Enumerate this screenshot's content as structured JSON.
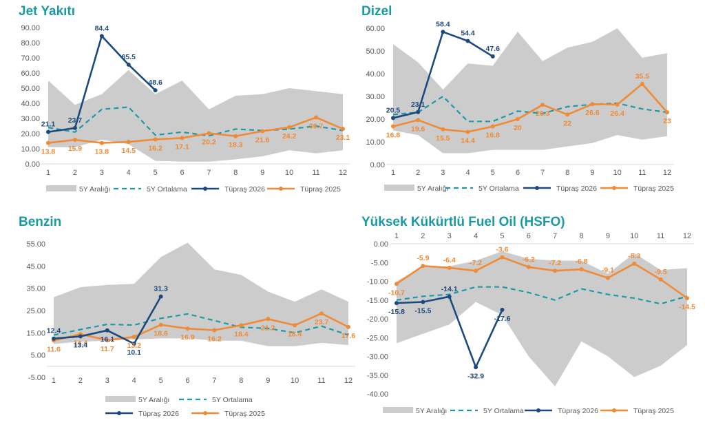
{
  "colors": {
    "title": "#1a9aa6",
    "range": "#cccccc",
    "avg": "#1a9aa6",
    "tupras2026": "#1d4a7e",
    "tupras2025": "#f08a35",
    "tick": "#595959",
    "axis": "#d9d9d9"
  },
  "chart_data": [
    {
      "type": "line",
      "title": "Jet Yakıtı",
      "categories": [
        "1",
        "2",
        "3",
        "4",
        "5",
        "6",
        "7",
        "8",
        "9",
        "10",
        "11",
        "12"
      ],
      "y_ticks": [
        "90.00",
        "80.00",
        "70.00",
        "60.00",
        "50.00",
        "40.00",
        "30.00",
        "20.00",
        "10.00",
        "0.00"
      ],
      "ylim": [
        0,
        90
      ],
      "legend": [
        "5Y Aralığı",
        "5Y Ortalama",
        "Tüpraş 2026",
        "Tüpraş 2025"
      ],
      "range_upper": [
        55,
        39,
        46,
        62,
        46,
        55,
        36,
        45,
        46,
        50,
        48,
        46
      ],
      "range_lower": [
        11,
        11,
        16,
        13,
        2,
        1.5,
        1.5,
        3,
        5,
        9,
        7,
        9
      ],
      "series": [
        {
          "name": "5Y Ortalama",
          "values": [
            24,
            21,
            36,
            37.5,
            19,
            21,
            18.5,
            23,
            22,
            23,
            25,
            22
          ]
        },
        {
          "name": "Tüpraş 2026",
          "values": [
            21.1,
            23.7,
            84.4,
            65.5,
            48.6,
            null,
            null,
            null,
            null,
            null,
            null,
            null
          ],
          "labels": [
            "21.1",
            "23.7",
            "84.4",
            "65.5",
            "48.6",
            "",
            "",
            "",
            "",
            "",
            "",
            ""
          ]
        },
        {
          "name": "Tüpraş 2025",
          "values": [
            13.8,
            15.9,
            13.8,
            14.5,
            16.2,
            17.1,
            20.2,
            18.3,
            21.6,
            24.2,
            30.7,
            23.1
          ],
          "labels": [
            "13.8",
            "15.9",
            "13.8",
            "14.5",
            "16.2",
            "17.1",
            "20.2",
            "18.3",
            "21.6",
            "24.2",
            "30.7",
            "23.1"
          ]
        }
      ]
    },
    {
      "type": "line",
      "title": "Dizel",
      "categories": [
        "1",
        "2",
        "3",
        "4",
        "5",
        "6",
        "7",
        "8",
        "9",
        "10",
        "11",
        "12"
      ],
      "y_ticks": [
        "60.00",
        "50.00",
        "40.00",
        "30.00",
        "20.00",
        "10.00",
        "0.00"
      ],
      "ylim": [
        0,
        60
      ],
      "legend": [
        "5Y Aralığı",
        "5Y Ortalama",
        "Tüpraş 2026",
        "Tüpraş 2025"
      ],
      "range_upper": [
        53,
        45,
        33,
        44.5,
        43.5,
        58.5,
        45.5,
        51.5,
        54,
        60,
        47,
        49
      ],
      "range_lower": [
        15,
        13,
        5,
        5,
        6.5,
        6.5,
        6.5,
        8,
        9.5,
        13,
        11,
        12.5
      ],
      "series": [
        {
          "name": "5Y Ortalama",
          "values": [
            22,
            23,
            30,
            19,
            19,
            23.5,
            22.5,
            25.5,
            26.5,
            27,
            24.5,
            23
          ]
        },
        {
          "name": "Tüpraş 2026",
          "values": [
            20.5,
            23.1,
            58.4,
            54.4,
            47.6,
            null,
            null,
            null,
            null,
            null,
            null,
            null
          ],
          "labels": [
            "20.5",
            "23.1",
            "58.4",
            "54.4",
            "47.6",
            "",
            "",
            "",
            "",
            "",
            "",
            ""
          ]
        },
        {
          "name": "Tüpraş 2025",
          "values": [
            16.8,
            19.6,
            15.5,
            14.4,
            16.8,
            20,
            26.3,
            22,
            26.6,
            26.4,
            35.5,
            23
          ],
          "labels": [
            "16.8",
            "19.6",
            "15.5",
            "14.4",
            "16.8",
            "20",
            "26.3",
            "22",
            "26.6",
            "26.4",
            "35.5",
            "23"
          ]
        }
      ]
    },
    {
      "type": "line",
      "title": "Benzin",
      "categories": [
        "1",
        "2",
        "3",
        "4",
        "5",
        "6",
        "7",
        "8",
        "9",
        "10",
        "11",
        "12"
      ],
      "y_ticks": [
        "55.00",
        "45.00",
        "35.00",
        "25.00",
        "15.00",
        "5.00",
        "-5.00"
      ],
      "ylim": [
        -5,
        55
      ],
      "legend": [
        "5Y Aralığı",
        "5Y Ortalama",
        "Tüpraş 2026",
        "Tüpraş 2025"
      ],
      "range_upper": [
        31,
        35.5,
        36.5,
        37,
        49,
        55.5,
        43.5,
        41,
        33.5,
        29,
        34.5,
        29
      ],
      "range_lower": [
        10,
        11,
        11.5,
        12,
        12.5,
        12.5,
        11.5,
        11.5,
        9,
        9,
        10.5,
        9.5
      ],
      "series": [
        {
          "name": "5Y Ortalama",
          "values": [
            14,
            16.5,
            18.8,
            18.5,
            21.5,
            23.5,
            20.5,
            17.5,
            17,
            15,
            18,
            14
          ]
        },
        {
          "name": "Tüpraş 2026",
          "values": [
            12.4,
            13.4,
            16.1,
            10.1,
            31.3,
            null,
            null,
            null,
            null,
            null,
            null,
            null
          ],
          "labels": [
            "12.4",
            "13.4",
            "16.1",
            "10.1",
            "31.3",
            "",
            "",
            "",
            "",
            "",
            "",
            ""
          ]
        },
        {
          "name": "Tüpraş 2025",
          "values": [
            11.6,
            14.4,
            11.7,
            13.2,
            18.6,
            16.9,
            16.2,
            18.4,
            21.2,
            18.4,
            23.7,
            17.6
          ],
          "labels": [
            "11.6",
            "14.4",
            "11.7",
            "13.2",
            "18.6",
            "16.9",
            "16.2",
            "18.4",
            "21.2",
            "18.4",
            "23.7",
            "17.6"
          ]
        }
      ]
    },
    {
      "type": "line",
      "title": "Yüksek Kükürtlü Fuel Oil (HSFO)",
      "categories": [
        "1",
        "2",
        "3",
        "4",
        "5",
        "6",
        "7",
        "8",
        "9",
        "10",
        "11",
        "12"
      ],
      "y_ticks": [
        "0.00",
        "-5.00",
        "-10.00",
        "-15.00",
        "-20.00",
        "-25.00",
        "-30.00",
        "-35.00",
        "-40.00"
      ],
      "ylim": [
        -40,
        0
      ],
      "legend": [
        "5Y Aralığı",
        "5Y Ortalama",
        "Tüpraş 2026",
        "Tüpraş 2025"
      ],
      "range_upper": [
        -10,
        -6,
        -6,
        -4.5,
        -2,
        -4,
        -4.5,
        -4.5,
        -8,
        -2.5,
        -7,
        -6.5
      ],
      "range_lower": [
        -26.5,
        -24,
        -21.5,
        -15.5,
        -19,
        -30,
        -38,
        -26,
        -30,
        -35.5,
        -32.5,
        -27
      ],
      "series": [
        {
          "name": "5Y Ortalama",
          "values": [
            -15,
            -14,
            -13.5,
            -11.5,
            -11.5,
            -13,
            -15,
            -12,
            -13.5,
            -14.5,
            -16,
            -14
          ]
        },
        {
          "name": "Tüpraş 2026",
          "values": [
            -15.8,
            -15.5,
            -14.1,
            -32.9,
            -17.6,
            null,
            null,
            null,
            null,
            null,
            null,
            null
          ],
          "labels": [
            "-15.8",
            "-15.5",
            "-14.1",
            "-32.9",
            "-17.6",
            "",
            "",
            "",
            "",
            "",
            "",
            ""
          ]
        },
        {
          "name": "Tüpraş 2025",
          "values": [
            -10.7,
            -5.9,
            -6.4,
            -7.2,
            -3.6,
            -6.2,
            -7.2,
            -6.8,
            -9.1,
            -5.3,
            -9.5,
            -14.5
          ],
          "labels": [
            "-10.7",
            "-5.9",
            "-6.4",
            "-7.2",
            "-3.6",
            "-6.2",
            "-7.2",
            "-6.8",
            "-9.1",
            "-5.3",
            "-9.5",
            "-14.5"
          ]
        }
      ]
    }
  ]
}
